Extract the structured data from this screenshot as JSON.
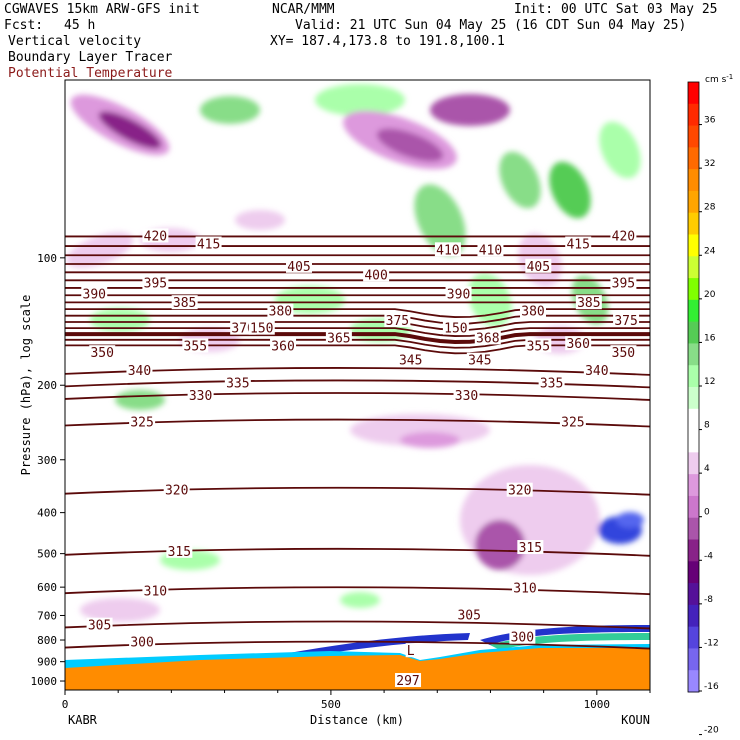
{
  "header": {
    "model": "CGWAVES 15km ARW-GFS init",
    "fcst_label": "Fcst:",
    "fcst_value": "45 h",
    "center": "NCAR/MMM",
    "init": "Init: 00 UTC Sat 03 May 25",
    "valid": "Valid: 21 UTC Sun 04 May 25 (16 CDT Sun 04 May 25)",
    "xy": "XY= 187.4,173.8 to 191.8,100.1",
    "field1": "Vertical velocity",
    "field2": "Boundary Layer Tracer",
    "field3": "Potential Temperature"
  },
  "colors": {
    "theta": "#5b0a0a",
    "terrain": "#ff8c00",
    "header_red": "#8b1a1a"
  },
  "chart_data": {
    "type": "heatmap",
    "xlabel": "Distance (km)",
    "ylabel": "Pressure (hPa), log scale",
    "x_ticks": [
      "0",
      "500",
      "1000"
    ],
    "x_tick_values": [
      0,
      500,
      1000
    ],
    "xlim": [
      0,
      1100
    ],
    "x_end_labels": {
      "left": "KABR",
      "right": "KOUN"
    },
    "y_ticks": [
      "100",
      "200",
      "300",
      "400",
      "500",
      "600",
      "700",
      "800",
      "900",
      "1000"
    ],
    "y_tick_values": [
      100,
      200,
      300,
      400,
      500,
      600,
      700,
      800,
      900,
      1000
    ],
    "log_y": true,
    "colorbar": {
      "unit": "cm s",
      "unit_exp": "-1",
      "labels": [
        "36",
        "32",
        "28",
        "24",
        "20",
        "16",
        "12",
        "8",
        "4",
        "0",
        "-4",
        "-8",
        "-12",
        "-16",
        "-20"
      ],
      "colors": [
        "#ff0000",
        "#ff2a00",
        "#ff4800",
        "#ff6a00",
        "#ff8c00",
        "#ffa500",
        "#ffcc00",
        "#ffff00",
        "#ccff33",
        "#80ff00",
        "#33ee33",
        "#55cc55",
        "#88dd88",
        "#aaffaa",
        "#ccffcc",
        "#ffffff",
        "#ffffff",
        "#eeccee",
        "#dd99dd",
        "#cc77cc",
        "#aa55aa",
        "#882288",
        "#660077",
        "#551199",
        "#4422bb",
        "#5544dd",
        "#7766ee",
        "#9988ff"
      ]
    },
    "isentrope_labels": [
      {
        "value": "420",
        "x_km": 170,
        "p": 89
      },
      {
        "value": "415",
        "x_km": 270,
        "p": 93
      },
      {
        "value": "410",
        "x_km": 720,
        "p": 96
      },
      {
        "value": "410",
        "x_km": 800,
        "p": 96
      },
      {
        "value": "415",
        "x_km": 965,
        "p": 93
      },
      {
        "value": "420",
        "x_km": 1050,
        "p": 89
      },
      {
        "value": "390",
        "x_km": 55,
        "p": 122
      },
      {
        "value": "395",
        "x_km": 170,
        "p": 115
      },
      {
        "value": "405",
        "x_km": 440,
        "p": 105
      },
      {
        "value": "400",
        "x_km": 585,
        "p": 110
      },
      {
        "value": "405",
        "x_km": 890,
        "p": 105
      },
      {
        "value": "395",
        "x_km": 1050,
        "p": 115
      },
      {
        "value": "385",
        "x_km": 225,
        "p": 128
      },
      {
        "value": "380",
        "x_km": 405,
        "p": 134
      },
      {
        "value": "390",
        "x_km": 740,
        "p": 122
      },
      {
        "value": "380",
        "x_km": 880,
        "p": 134
      },
      {
        "value": "385",
        "x_km": 985,
        "p": 128
      },
      {
        "value": "375",
        "x_km": 1055,
        "p": 141
      },
      {
        "value": "370",
        "x_km": 335,
        "p": 147
      },
      {
        "value": "150",
        "x_km": 370,
        "p": 147
      },
      {
        "value": "375",
        "x_km": 625,
        "p": 141
      },
      {
        "value": "150",
        "x_km": 735,
        "p": 147
      },
      {
        "value": "365",
        "x_km": 515,
        "p": 155
      },
      {
        "value": "368",
        "x_km": 795,
        "p": 155
      },
      {
        "value": "350",
        "x_km": 70,
        "p": 168
      },
      {
        "value": "355",
        "x_km": 245,
        "p": 162
      },
      {
        "value": "360",
        "x_km": 410,
        "p": 162
      },
      {
        "value": "355",
        "x_km": 890,
        "p": 162
      },
      {
        "value": "360",
        "x_km": 965,
        "p": 160
      },
      {
        "value": "350",
        "x_km": 1050,
        "p": 168
      },
      {
        "value": "345",
        "x_km": 650,
        "p": 175
      },
      {
        "value": "345",
        "x_km": 780,
        "p": 175
      },
      {
        "value": "340",
        "x_km": 140,
        "p": 185
      },
      {
        "value": "340",
        "x_km": 1000,
        "p": 185
      },
      {
        "value": "335",
        "x_km": 325,
        "p": 198
      },
      {
        "value": "335",
        "x_km": 915,
        "p": 198
      },
      {
        "value": "330",
        "x_km": 255,
        "p": 212
      },
      {
        "value": "330",
        "x_km": 755,
        "p": 212
      },
      {
        "value": "325",
        "x_km": 145,
        "p": 245
      },
      {
        "value": "325",
        "x_km": 955,
        "p": 245
      },
      {
        "value": "320",
        "x_km": 210,
        "p": 355
      },
      {
        "value": "320",
        "x_km": 855,
        "p": 355
      },
      {
        "value": "315",
        "x_km": 215,
        "p": 495
      },
      {
        "value": "315",
        "x_km": 875,
        "p": 485
      },
      {
        "value": "310",
        "x_km": 170,
        "p": 615
      },
      {
        "value": "310",
        "x_km": 865,
        "p": 605
      },
      {
        "value": "305",
        "x_km": 65,
        "p": 740
      },
      {
        "value": "305",
        "x_km": 760,
        "p": 700
      },
      {
        "value": "300",
        "x_km": 145,
        "p": 810
      },
      {
        "value": "300",
        "x_km": 860,
        "p": 790
      },
      {
        "value": "L",
        "x_km": 650,
        "p": 850
      },
      {
        "value": "297",
        "x_km": 645,
        "p": 1000
      }
    ]
  }
}
